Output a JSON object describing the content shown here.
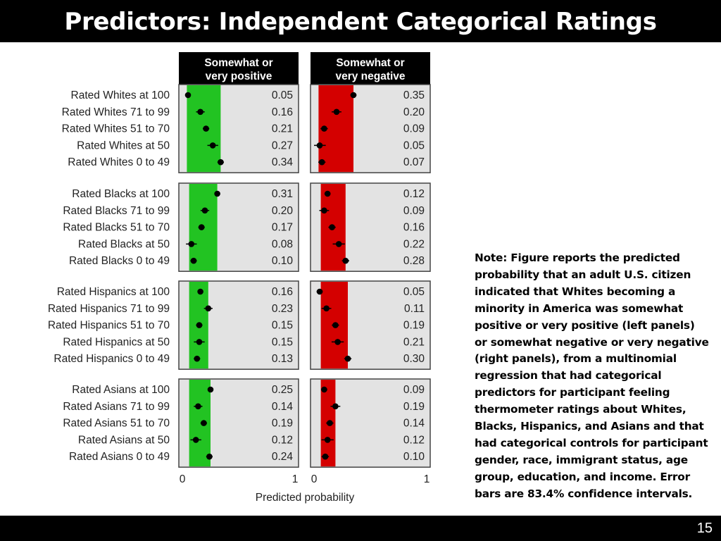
{
  "slide": {
    "title": "Predictors: Independent Categorical Ratings",
    "page_number": "15",
    "note": "Note: Figure reports the predicted probability that an adult U.S. citizen indicated that Whites becoming a minority in America was somewhat positive or very positive (left panels) or somewhat negative or very negative (right panels), from a multinomial regression that had categorical predictors for participant feeling thermometer ratings about Whites, Blacks, Hispanics, and Asians and that had categorical controls for participant gender, race, immigrant status, age group, education, and income. Error bars are 83.4% confidence intervals."
  },
  "colors": {
    "positive": "#22c322",
    "negative": "#d40000",
    "panel_bg": "#e3e3e3",
    "header_bg": "#000000"
  },
  "chart_data": {
    "type": "dot-plot",
    "xlabel": "Predicted probability",
    "xlim": [
      0,
      1
    ],
    "xticks": [
      "0",
      "1"
    ],
    "panels": [
      "Somewhat or very positive",
      "Somewhat or very negative"
    ],
    "groups": [
      {
        "rows": [
          {
            "label": "Rated Whites at 100",
            "pos": 0.05,
            "neg": 0.35
          },
          {
            "label": "Rated Whites 71 to 99",
            "pos": 0.16,
            "neg": 0.2
          },
          {
            "label": "Rated Whites 51 to 70",
            "pos": 0.21,
            "neg": 0.09
          },
          {
            "label": "Rated Whites at 50",
            "pos": 0.27,
            "neg": 0.05
          },
          {
            "label": "Rated Whites 0 to 49",
            "pos": 0.34,
            "neg": 0.07
          }
        ]
      },
      {
        "rows": [
          {
            "label": "Rated Blacks at 100",
            "pos": 0.31,
            "neg": 0.12
          },
          {
            "label": "Rated Blacks 71 to 99",
            "pos": 0.2,
            "neg": 0.09
          },
          {
            "label": "Rated Blacks 51 to 70",
            "pos": 0.17,
            "neg": 0.16
          },
          {
            "label": "Rated Blacks at 50",
            "pos": 0.08,
            "neg": 0.22
          },
          {
            "label": "Rated Blacks 0 to 49",
            "pos": 0.1,
            "neg": 0.28
          }
        ]
      },
      {
        "rows": [
          {
            "label": "Rated Hispanics at 100",
            "pos": 0.16,
            "neg": 0.05
          },
          {
            "label": "Rated Hispanics 71 to 99",
            "pos": 0.23,
            "neg": 0.11
          },
          {
            "label": "Rated Hispanics 51 to 70",
            "pos": 0.15,
            "neg": 0.19
          },
          {
            "label": "Rated Hispanics at 50",
            "pos": 0.15,
            "neg": 0.21
          },
          {
            "label": "Rated Hispanics 0 to 49",
            "pos": 0.13,
            "neg": 0.3
          }
        ]
      },
      {
        "rows": [
          {
            "label": "Rated Asians at 100",
            "pos": 0.25,
            "neg": 0.09
          },
          {
            "label": "Rated Asians 71 to 99",
            "pos": 0.14,
            "neg": 0.19
          },
          {
            "label": "Rated Asians 51 to 70",
            "pos": 0.19,
            "neg": 0.14
          },
          {
            "label": "Rated Asians at 50",
            "pos": 0.12,
            "neg": 0.12
          },
          {
            "label": "Rated Asians 0 to 49",
            "pos": 0.24,
            "neg": 0.1
          }
        ]
      }
    ]
  }
}
